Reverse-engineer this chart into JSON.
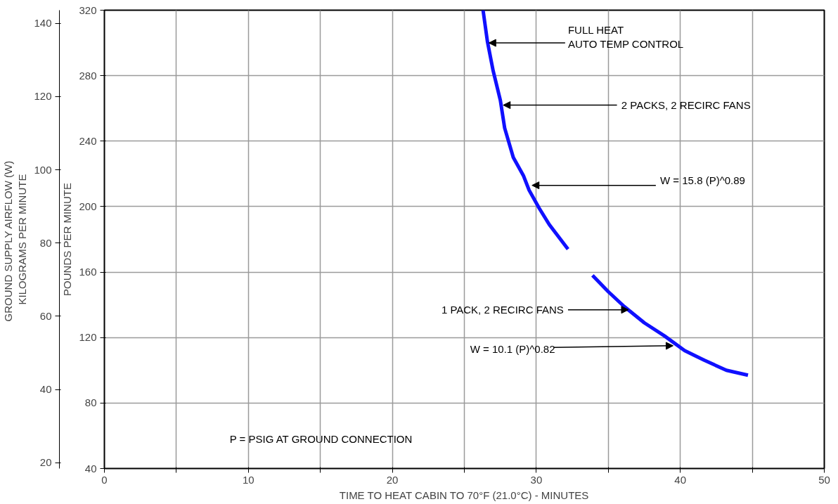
{
  "chart_data": {
    "type": "line",
    "xlabel": "TIME TO HEAT CABIN TO 70°F (21.0°C) - MINUTES",
    "ylabel": "POUNDS PER MINUTE",
    "y2label": "GROUND SUPPLY AIRFLOW  (W)\nKILOGRAMS PER MINUTE",
    "xlim": [
      0,
      50
    ],
    "ylim": [
      40,
      320
    ],
    "y2lim": [
      18.4,
      143.6
    ],
    "xticks": [
      0,
      {
        "value": 5,
        "label": null
      },
      10,
      {
        "value": 15,
        "label": null
      },
      20,
      {
        "value": 25,
        "label": null
      },
      30,
      {
        "value": 35,
        "label": null
      },
      40,
      {
        "value": 45,
        "label": null
      },
      50
    ],
    "yticks": [
      40,
      80,
      120,
      160,
      200,
      240,
      280,
      320
    ],
    "y2ticks": [
      20,
      40,
      60,
      80,
      100,
      120,
      140
    ],
    "grid": true,
    "marker": "none",
    "line_style": "solid",
    "series": [
      {
        "color": "#1010ff",
        "x": [
          26.3,
          26.6,
          27.0,
          27.5,
          27.8,
          28.4,
          29.1,
          29.5,
          30.2,
          30.9,
          32.2
        ],
        "values": [
          320,
          301,
          283,
          265,
          248,
          230,
          219,
          210,
          199,
          189,
          174
        ]
      },
      {
        "color": "#1010ff",
        "x": [
          33.9,
          35.0,
          36.1,
          37.5,
          38.9,
          40.3,
          41.7,
          43.2,
          44.7
        ],
        "values": [
          158,
          148,
          139,
          129,
          121,
          112,
          106,
          100,
          97
        ]
      }
    ],
    "annotations": [
      {
        "text": "FULL HEAT\nAUTO TEMP CONTROL",
        "x": 26.7,
        "y": 300
      },
      {
        "text": "2 PACKS, 2 RECIRC FANS",
        "x": 27.7,
        "y": 262
      },
      {
        "text": "W = 15.8 (P)^0.89",
        "x": 29.7,
        "y": 213
      },
      {
        "text": "1 PACK, 2 RECIRC FANS",
        "x": 36.4,
        "y": 137
      },
      {
        "text": "W = 10.1 (P)^0.82",
        "x": 39.5,
        "y": 115
      },
      "P = PSIG AT GROUND CONNECTION"
    ]
  }
}
